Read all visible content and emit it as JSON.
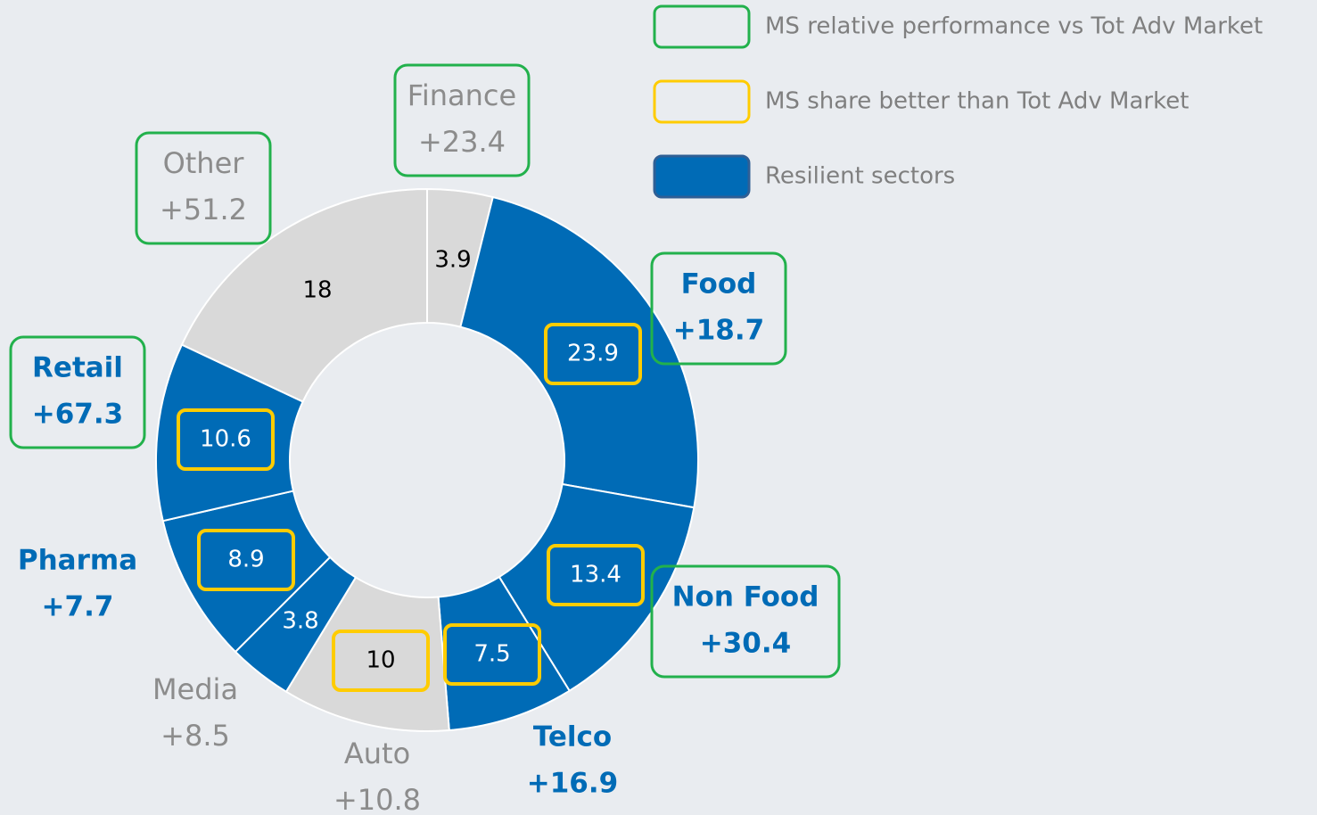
{
  "chart_data": {
    "type": "donut",
    "categories": [
      "Finance",
      "Food",
      "Non Food",
      "Telco",
      "Auto",
      "Media",
      "Pharma",
      "Retail",
      "Other"
    ],
    "changes": [
      "+23.4",
      "+18.7",
      "+30.4",
      "+16.9",
      "+10.8",
      "+8.5",
      "+7.7",
      "+67.3",
      "+51.2"
    ],
    "values": [
      3.9,
      23.9,
      13.4,
      7.5,
      10.0,
      3.8,
      8.9,
      10.6,
      18.0
    ],
    "colors": [
      "#d9d9d9",
      "#006bb6",
      "#006bb6",
      "#006bb6",
      "#d9d9d9",
      "#006bb6",
      "#006bb6",
      "#006bb6",
      "#d9d9d9"
    ],
    "value_text_colors": [
      "#000000",
      "#ffffff",
      "#ffffff",
      "#ffffff",
      "#000000",
      "#ffffff",
      "#ffffff",
      "#ffffff",
      "#000000"
    ],
    "label_colors": [
      "#8c8c8c",
      "#006bb6",
      "#006bb6",
      "#006bb6",
      "#8c8c8c",
      "#8c8c8c",
      "#006bb6",
      "#006bb6",
      "#8c8c8c"
    ],
    "label_bold": [
      false,
      true,
      true,
      true,
      false,
      false,
      true,
      true,
      false
    ],
    "label_box": [
      true,
      true,
      true,
      false,
      false,
      false,
      false,
      true,
      true
    ],
    "value_box": [
      false,
      true,
      true,
      true,
      true,
      false,
      true,
      true,
      false
    ],
    "legend": [
      {
        "name": "MS relative performance vs Tot Adv Market",
        "stroke": "#22b14c",
        "fill": "none"
      },
      {
        "name": "MS share better than Tot Adv Market",
        "stroke": "#ffcc00",
        "fill": "none"
      },
      {
        "name": "Resilient sectors",
        "stroke": "#2f5f95",
        "fill": "#006bb6"
      }
    ]
  }
}
